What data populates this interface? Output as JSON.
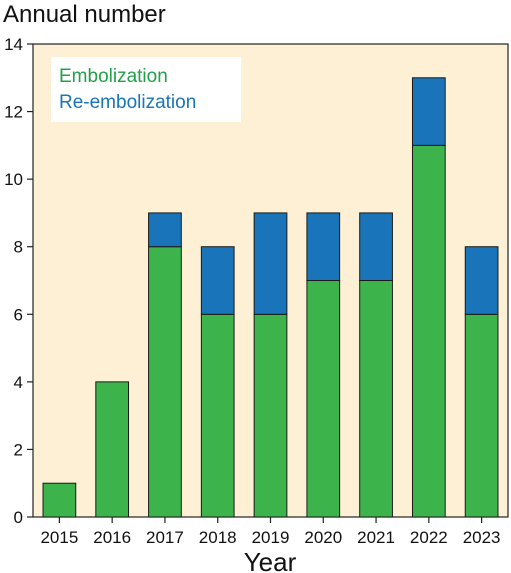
{
  "chart_data": {
    "type": "bar",
    "stacked": true,
    "ylabel": "Annual number",
    "xlabel": "Year",
    "categories": [
      "2015",
      "2016",
      "2017",
      "2018",
      "2019",
      "2020",
      "2021",
      "2022",
      "2023"
    ],
    "series": [
      {
        "name": "Embolization",
        "values": [
          1,
          4,
          8,
          6,
          6,
          7,
          7,
          11,
          6
        ],
        "color": "#3cb44b"
      },
      {
        "name": "Re-embolization",
        "values": [
          0,
          0,
          1,
          2,
          3,
          2,
          2,
          2,
          2
        ],
        "color": "#1a74b9"
      }
    ],
    "ylim": [
      0,
      14
    ],
    "yticks": [
      0,
      2,
      4,
      6,
      8,
      10,
      12,
      14
    ],
    "ytick_labels": [
      "0",
      "2",
      "4",
      "6",
      "8",
      "10",
      "12",
      "14"
    ],
    "grid": false,
    "legend_position": "top-left",
    "plot_background": "#fdf0d5"
  }
}
